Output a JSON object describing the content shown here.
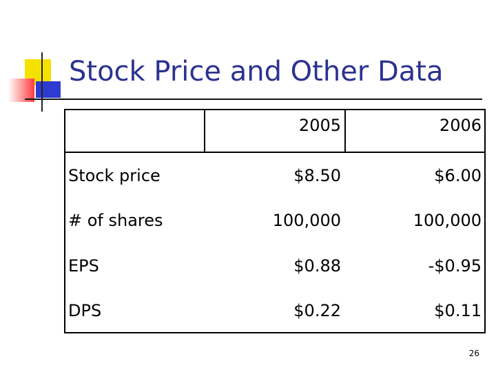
{
  "slide": {
    "title": "Stock Price and Other Data",
    "page_number": "26"
  },
  "table": {
    "columns": [
      "",
      "2005",
      "2006"
    ],
    "rows": [
      {
        "label": "Stock price",
        "y2005": "$8.50",
        "y2006": "$6.00"
      },
      {
        "label": "# of shares",
        "y2005": "100,000",
        "y2006": "100,000"
      },
      {
        "label": "EPS",
        "y2005": "$0.88",
        "y2006": "-$0.95"
      },
      {
        "label": "DPS",
        "y2005": "$0.22",
        "y2006": "$0.11"
      }
    ]
  }
}
